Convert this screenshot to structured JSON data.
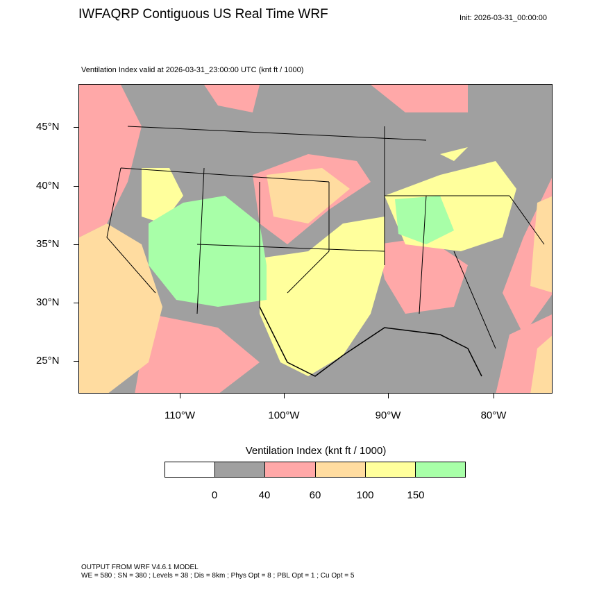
{
  "header": {
    "title": "IWFAQRP Contiguous US Real Time WRF",
    "init": "Init: 2026-03-31_00:00:00",
    "subtitle": "Ventilation Index valid at 2026-03-31_23:00:00 UTC   (knt ft / 1000)"
  },
  "map": {
    "lat_labels": [
      "45°N",
      "40°N",
      "35°N",
      "30°N",
      "25°N"
    ],
    "lon_labels": [
      "110°W",
      "100°W",
      "90°W",
      "80°W"
    ]
  },
  "colorbar": {
    "title": "Ventilation Index  (knt ft / 1000)",
    "colors": [
      "#ffffff",
      "#a0a0a0",
      "#ffa8a8",
      "#ffdca0",
      "#ffff9c",
      "#a8ffa8"
    ],
    "labels": [
      "0",
      "40",
      "60",
      "100",
      "150"
    ]
  },
  "footer": {
    "line1": "OUTPUT FROM WRF V4.6.1 MODEL",
    "line2": "WE = 580 ; SN = 380 ; Levels = 38 ; Dis = 8km ; Phys Opt = 8 ; PBL Opt = 1 ; Cu Opt = 5"
  }
}
